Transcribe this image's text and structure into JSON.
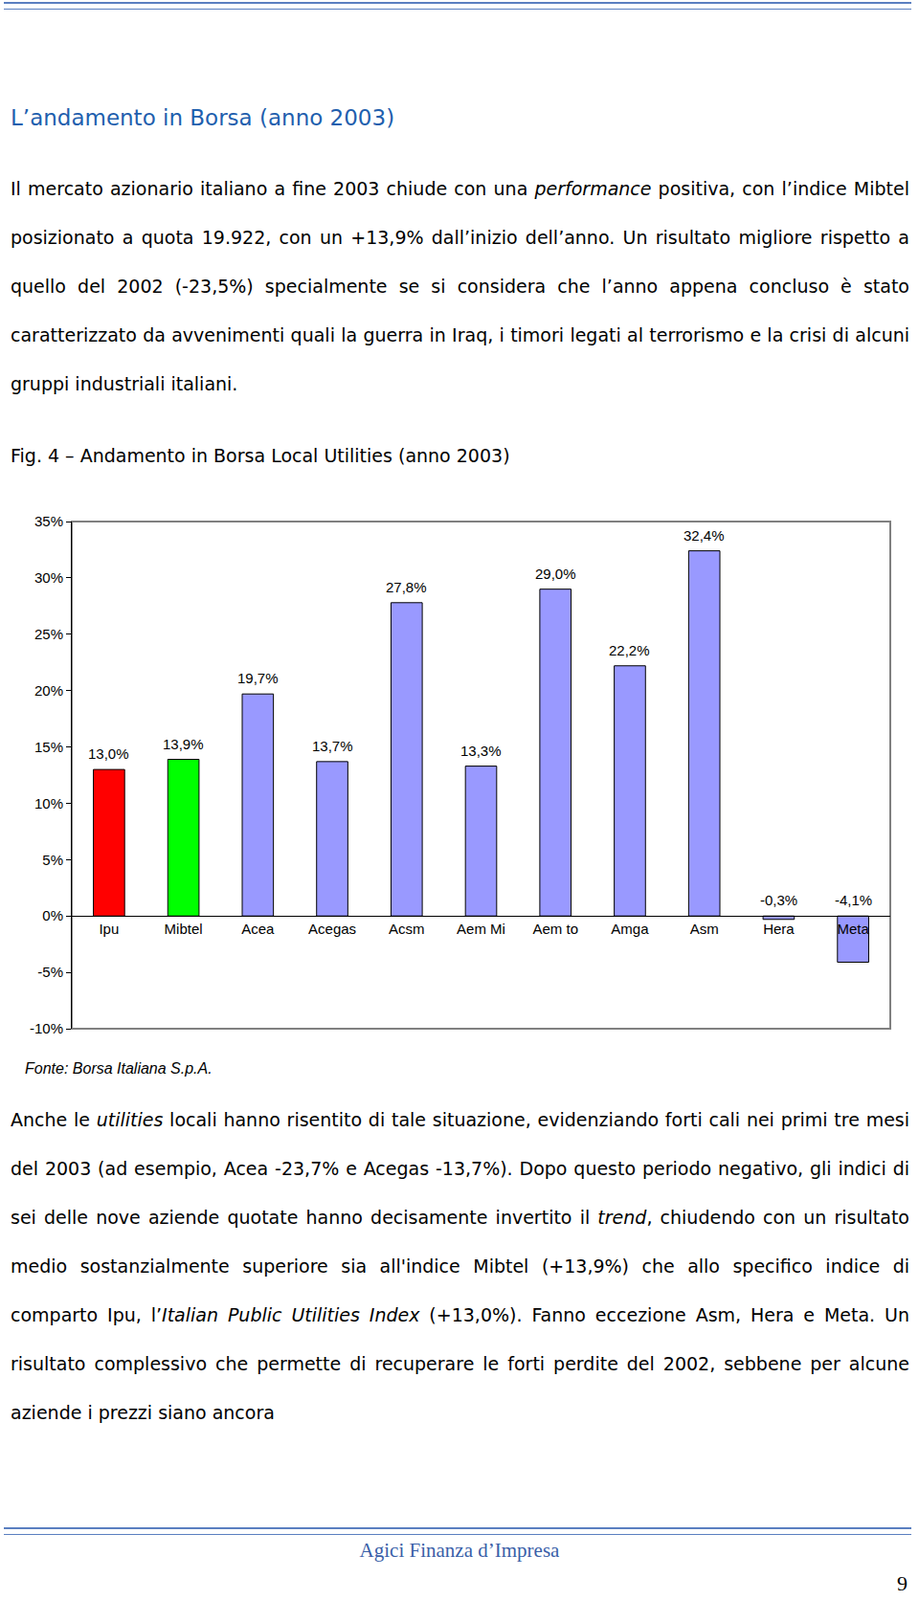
{
  "title": "L’andamento in Borsa (anno 2003)",
  "paragraphs": [
    [
      {
        "text": "Il mercato azionario italiano a fine 2003 chiude con una "
      },
      {
        "text": "performance",
        "italic": true
      },
      {
        "text": " positiva, con l’indice Mibtel  posizionato a quota 19.922, con un +13,9% dall’inizio dell’anno. Un risultato migliore rispetto a quello del 2002 (-23,5%) specialmente se si considera che l’anno appena concluso è stato caratterizzato da avvenimenti quali la guerra in Iraq, i timori legati al terrorismo e la crisi di alcuni gruppi industriali italiani."
      }
    ]
  ],
  "chart_data": {
    "type": "bar",
    "title": "Fig. 4 – Andamento in Borsa Local Utilities (anno 2003)",
    "categories": [
      "Ipu",
      "Mibtel",
      "Acea",
      "Acegas",
      "Acsm",
      "Aem Mi",
      "Aem to",
      "Amga",
      "Asm",
      "Hera",
      "Meta"
    ],
    "values": [
      13.0,
      13.9,
      19.7,
      13.7,
      27.8,
      13.3,
      29.0,
      22.2,
      32.4,
      -0.3,
      -4.1
    ],
    "value_labels": [
      "13,0%",
      "13,9%",
      "19,7%",
      "13,7%",
      "27,8%",
      "13,3%",
      "29,0%",
      "22,2%",
      "32,4%",
      "-0,3%",
      "-4,1%"
    ],
    "colors": [
      "#ff0000",
      "#00ff00",
      "#9999ff",
      "#9999ff",
      "#9999ff",
      "#9999ff",
      "#9999ff",
      "#9999ff",
      "#9999ff",
      "#9999ff",
      "#9999ff"
    ],
    "ylim": [
      -10,
      35
    ],
    "yticks": [
      {
        "value": -10,
        "label": "-10%"
      },
      {
        "value": -5,
        "label": "-5%"
      },
      {
        "value": 0,
        "label": "0%"
      },
      {
        "value": 5,
        "label": "5%"
      },
      {
        "value": 10,
        "label": "10%"
      },
      {
        "value": 15,
        "label": "15%"
      },
      {
        "value": 20,
        "label": "20%"
      },
      {
        "value": 25,
        "label": "25%"
      },
      {
        "value": 30,
        "label": "30%"
      },
      {
        "value": 35,
        "label": "35%"
      }
    ],
    "grid": false,
    "data_labels": true
  },
  "source": "Fonte: Borsa Italiana S.p.A.",
  "paragraphs_after": [
    [
      {
        "text": "Anche le "
      },
      {
        "text": "utilities",
        "italic": true
      },
      {
        "text": " locali hanno risentito di tale situazione, evidenziando forti cali nei primi tre mesi del 2003 (ad esempio, Acea -23,7% e Acegas -13,7%). Dopo questo periodo negativo, gli indici di sei delle nove aziende quotate hanno decisamente invertito il "
      },
      {
        "text": "trend",
        "italic": true
      },
      {
        "text": ", chiudendo con un risultato medio sostanzialmente superiore sia all'indice Mibtel (+13,9%) che allo specifico indice di comparto Ipu, l’"
      },
      {
        "text": "Italian Public Utilities Index",
        "italic": true
      },
      {
        "text": " (+13,0%). Fanno eccezione Asm, Hera e Meta. Un risultato complessivo che permette di recuperare le forti perdite del 2002, sebbene per alcune aziende i prezzi siano ancora"
      }
    ]
  ],
  "footer": "Agici Finanza d’Impresa",
  "page_number": 9
}
